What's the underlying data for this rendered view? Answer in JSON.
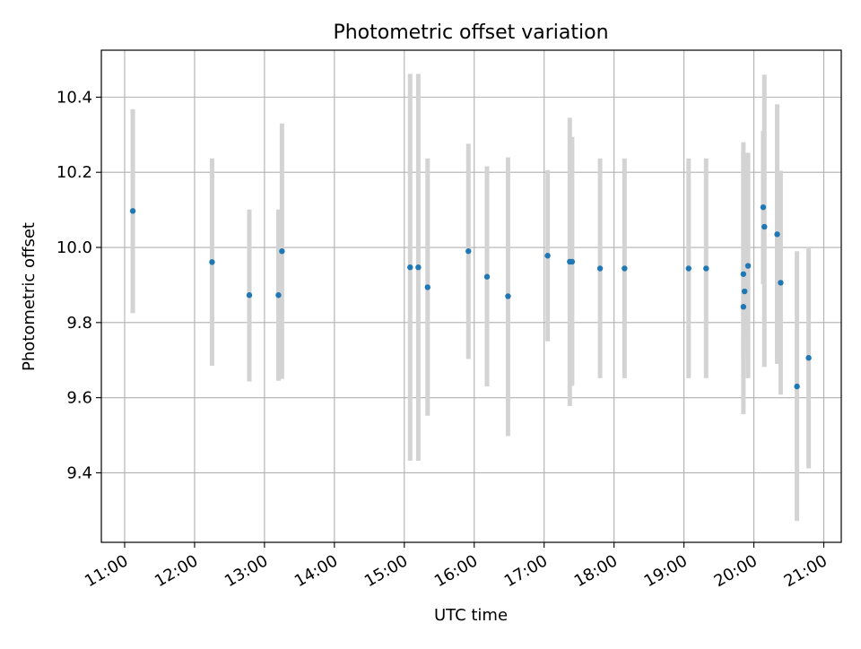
{
  "chart_data": {
    "type": "scatter",
    "title": "Photometric offset variation",
    "xlabel": "UTC time",
    "ylabel": "Photometric offset",
    "grid": true,
    "legend": null,
    "colors": {
      "marker": "#1f77b4",
      "errorbar": "#d3d3d3",
      "grid": "#b0b0b0"
    },
    "xlim": [
      "10:40",
      "21:15"
    ],
    "ylim": [
      9.215,
      10.525
    ],
    "x_ticks": [
      "11:00",
      "12:00",
      "13:00",
      "14:00",
      "15:00",
      "16:00",
      "17:00",
      "18:00",
      "19:00",
      "20:00",
      "21:00"
    ],
    "y_ticks": [
      9.4,
      9.6,
      9.8,
      10.0,
      10.2,
      10.4
    ],
    "y_tick_labels": [
      "9.4",
      "9.6",
      "9.8",
      "10.0",
      "10.2",
      "10.4"
    ],
    "series": [
      {
        "points": [
          {
            "x": "11:07",
            "y": 10.097,
            "ylo": 9.825,
            "yhi": 10.368
          },
          {
            "x": "12:15",
            "y": 9.961,
            "ylo": 9.685,
            "yhi": 10.237
          },
          {
            "x": "12:47",
            "y": 9.873,
            "ylo": 9.643,
            "yhi": 10.101
          },
          {
            "x": "13:12",
            "y": 9.873,
            "ylo": 9.645,
            "yhi": 10.101
          },
          {
            "x": "13:15",
            "y": 9.99,
            "ylo": 9.65,
            "yhi": 10.33
          },
          {
            "x": "15:05",
            "y": 9.947,
            "ylo": 9.432,
            "yhi": 10.462
          },
          {
            "x": "15:12",
            "y": 9.947,
            "ylo": 9.432,
            "yhi": 10.462
          },
          {
            "x": "15:20",
            "y": 9.894,
            "ylo": 9.552,
            "yhi": 10.237
          },
          {
            "x": "15:55",
            "y": 9.99,
            "ylo": 9.703,
            "yhi": 10.276
          },
          {
            "x": "16:11",
            "y": 9.922,
            "ylo": 9.63,
            "yhi": 10.216
          },
          {
            "x": "16:29",
            "y": 9.87,
            "ylo": 9.498,
            "yhi": 10.24
          },
          {
            "x": "17:03",
            "y": 9.978,
            "ylo": 9.75,
            "yhi": 10.206
          },
          {
            "x": "17:22",
            "y": 9.962,
            "ylo": 9.578,
            "yhi": 10.345
          },
          {
            "x": "17:24",
            "y": 9.962,
            "ylo": 9.632,
            "yhi": 10.294
          },
          {
            "x": "17:48",
            "y": 9.944,
            "ylo": 9.652,
            "yhi": 10.237
          },
          {
            "x": "18:09",
            "y": 9.944,
            "ylo": 9.652,
            "yhi": 10.237
          },
          {
            "x": "19:04",
            "y": 9.944,
            "ylo": 9.652,
            "yhi": 10.237
          },
          {
            "x": "19:19",
            "y": 9.944,
            "ylo": 9.652,
            "yhi": 10.237
          },
          {
            "x": "19:51",
            "y": 9.929,
            "ylo": 9.556,
            "yhi": 10.28
          },
          {
            "x": "19:51",
            "y": 9.842,
            "ylo": 9.706,
            "yhi": 10.253
          },
          {
            "x": "19:52",
            "y": 9.883,
            "ylo": 9.764,
            "yhi": 10.235
          },
          {
            "x": "19:55",
            "y": 9.951,
            "ylo": 9.652,
            "yhi": 10.252
          },
          {
            "x": "20:08",
            "y": 10.107,
            "ylo": 9.902,
            "yhi": 10.31
          },
          {
            "x": "20:09",
            "y": 10.055,
            "ylo": 9.682,
            "yhi": 10.46
          },
          {
            "x": "20:20",
            "y": 10.035,
            "ylo": 9.69,
            "yhi": 10.381
          },
          {
            "x": "20:23",
            "y": 9.906,
            "ylo": 9.608,
            "yhi": 10.204
          },
          {
            "x": "20:37",
            "y": 9.63,
            "ylo": 9.272,
            "yhi": 9.99
          },
          {
            "x": "20:47",
            "y": 9.706,
            "ylo": 9.412,
            "yhi": 10.0
          }
        ]
      }
    ]
  }
}
